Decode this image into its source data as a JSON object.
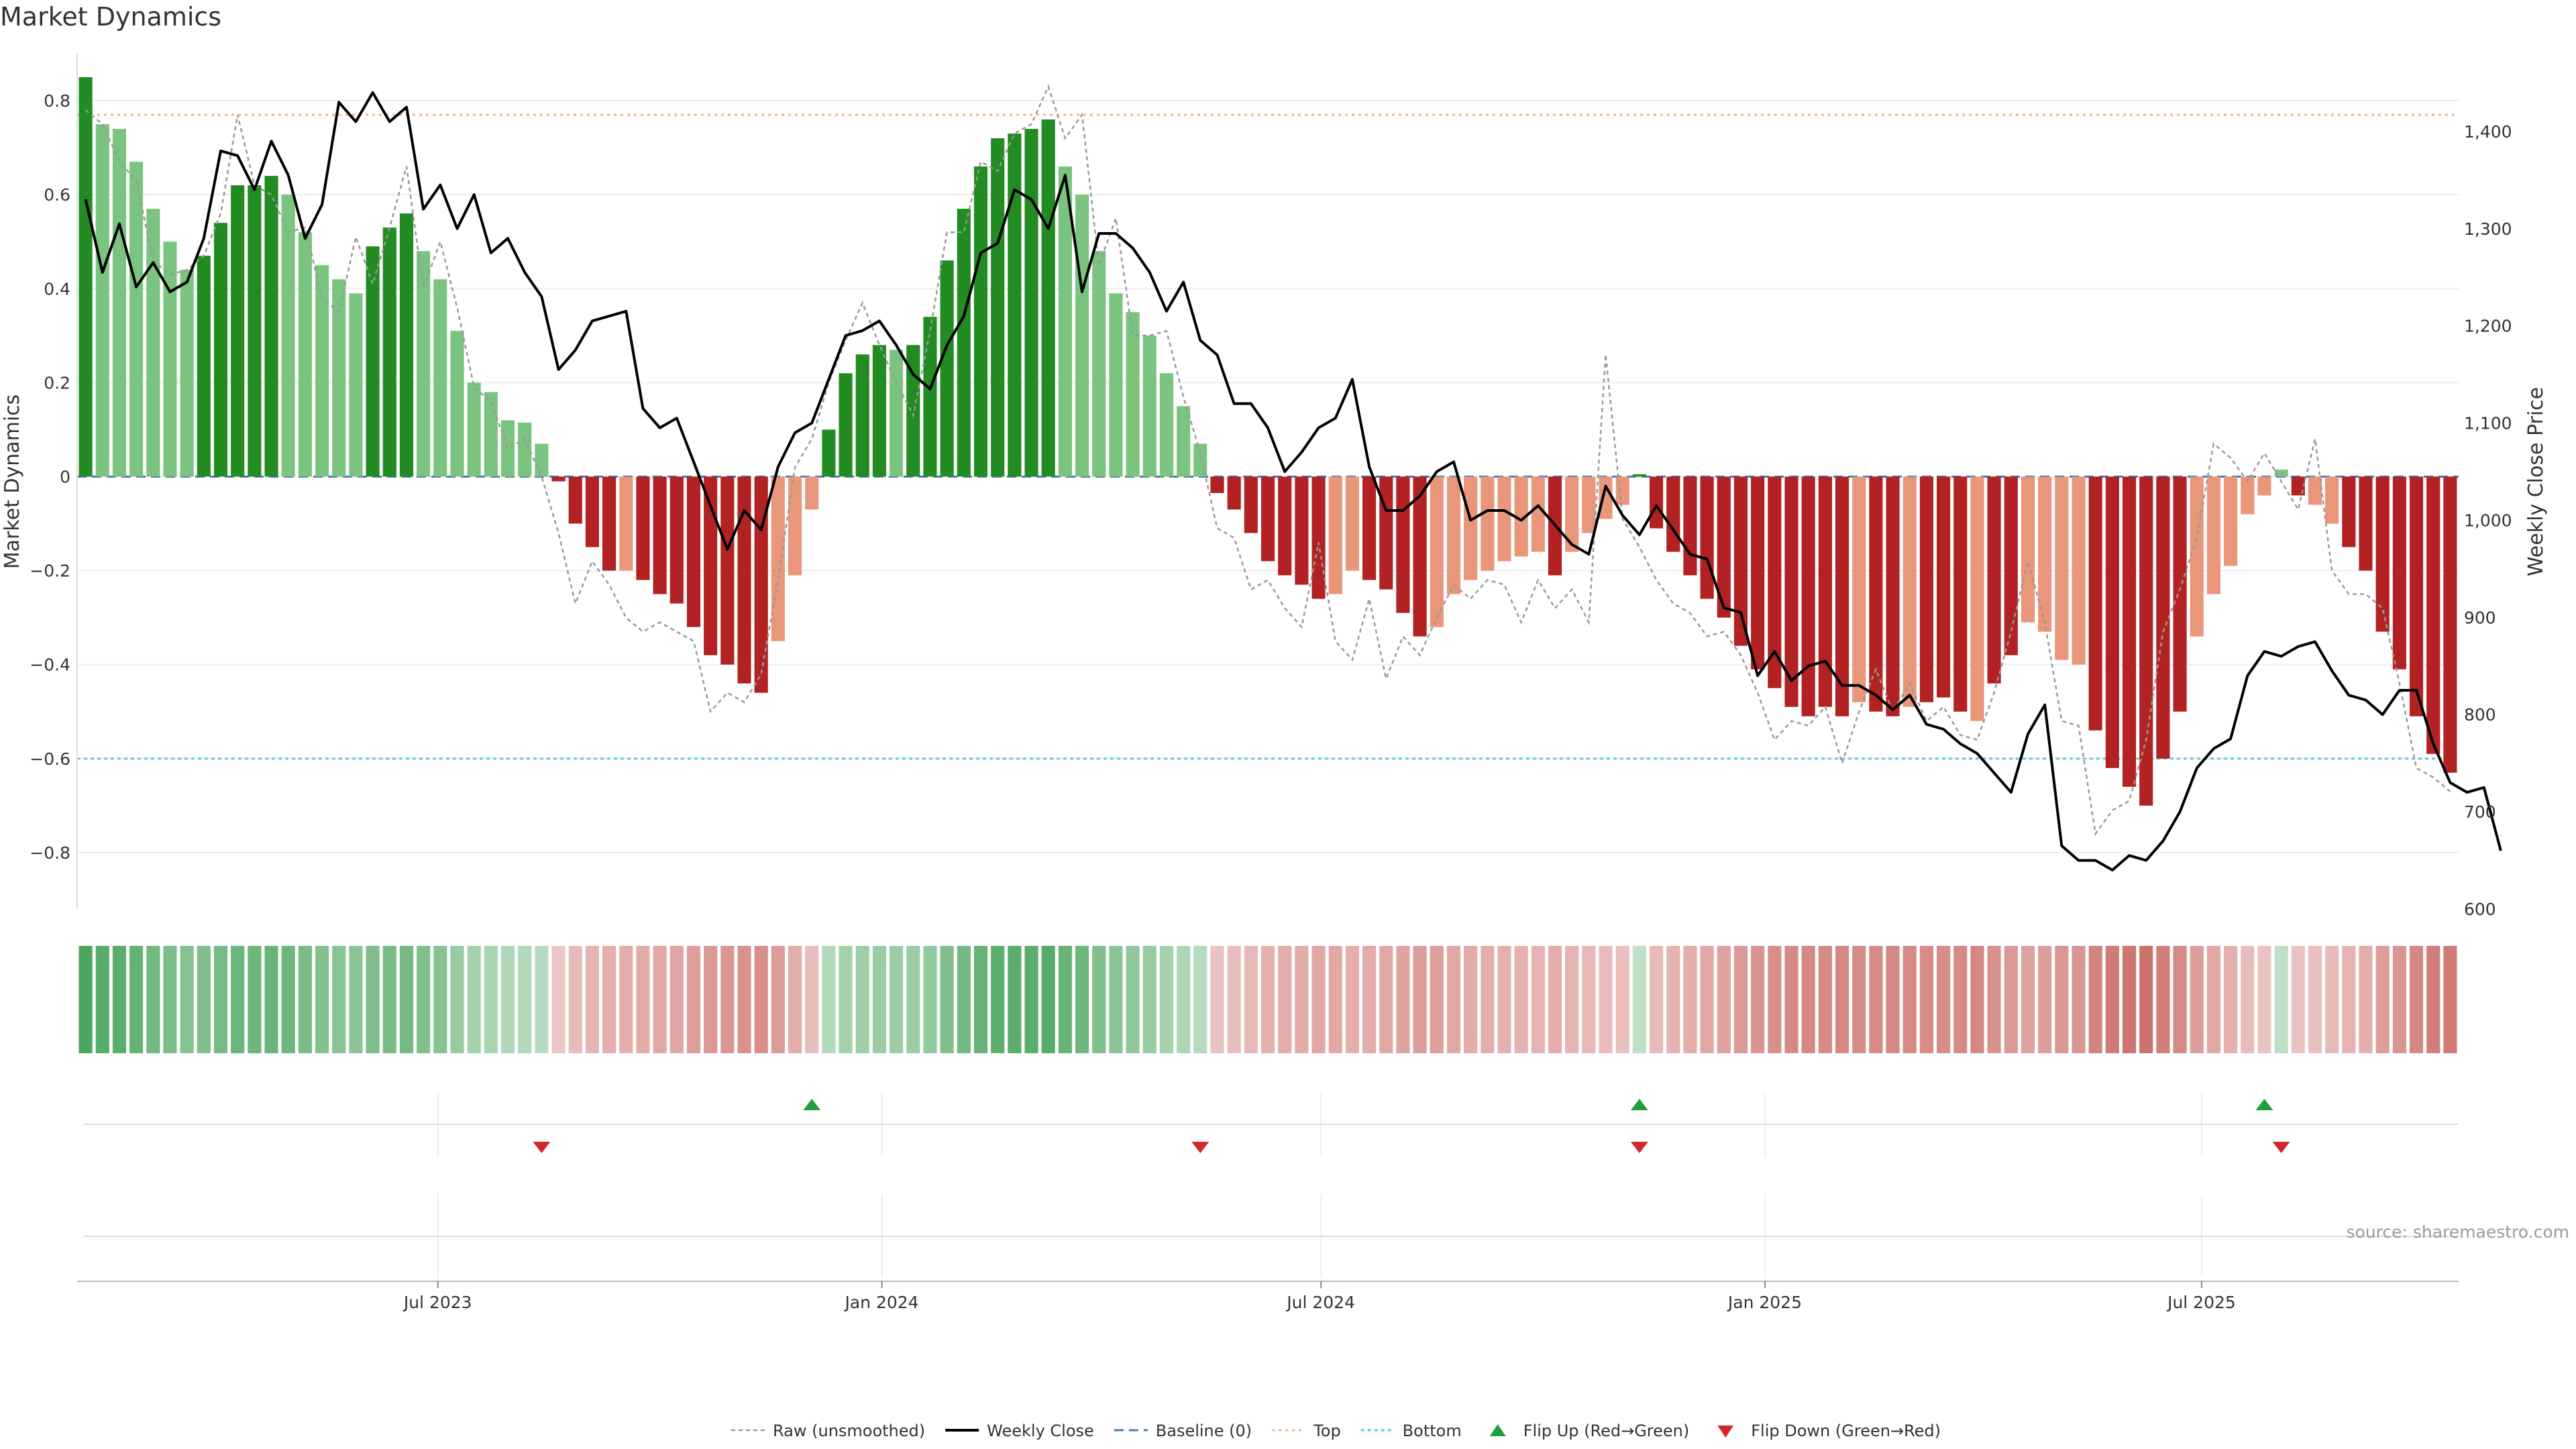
{
  "title": "Market Dynamics",
  "source": "source: sharemaestro.com",
  "colors": {
    "strong_green": "#228B22",
    "light_green": "#7BC47F",
    "strong_red": "#B22222",
    "light_red": "#E9967A",
    "price": "#000000",
    "raw": "#999999",
    "baseline": "#4A78B0",
    "top": "#F0B48C",
    "bottom": "#5BC8DC",
    "flip_up": "#1E9E3E",
    "flip_down": "#D62728"
  },
  "chart_data": {
    "type": "bar",
    "start_date": "2023-02-05",
    "interval_days": 7,
    "ylabel": "Market Dynamics",
    "y2label": "Weekly Close Price",
    "ylim": [
      -0.92,
      0.9
    ],
    "y2lim": [
      600,
      1480
    ],
    "yticks": [
      "0.8",
      "0.6",
      "0.4",
      "0.2",
      "0",
      "−0.2",
      "−0.4",
      "−0.6",
      "−0.8"
    ],
    "y2ticks": [
      "1,400",
      "1,300",
      "1,200",
      "1,100",
      "1,000",
      "900",
      "800",
      "700",
      "600"
    ],
    "top_threshold": 0.77,
    "bottom_threshold": -0.6,
    "x_ticks": [
      {
        "label": "Jul 2023",
        "date": "2023-07-01"
      },
      {
        "label": "Jan 2024",
        "date": "2024-01-01"
      },
      {
        "label": "Jul 2024",
        "date": "2024-07-01"
      },
      {
        "label": "Jan 2025",
        "date": "2025-01-01"
      },
      {
        "label": "Jul 2025",
        "date": "2025-07-01"
      }
    ],
    "dynamics": [
      0.85,
      0.75,
      0.74,
      0.67,
      0.57,
      0.5,
      0.44,
      0.47,
      0.54,
      0.62,
      0.62,
      0.64,
      0.6,
      0.52,
      0.45,
      0.42,
      0.39,
      0.49,
      0.53,
      0.56,
      0.48,
      0.42,
      0.31,
      0.2,
      0.18,
      0.12,
      0.115,
      0.07,
      -0.01,
      -0.1,
      -0.15,
      -0.2,
      -0.2,
      -0.22,
      -0.25,
      -0.27,
      -0.32,
      -0.38,
      -0.4,
      -0.44,
      -0.46,
      -0.35,
      -0.21,
      -0.07,
      0.1,
      0.22,
      0.26,
      0.28,
      0.27,
      0.28,
      0.34,
      0.46,
      0.57,
      0.66,
      0.72,
      0.73,
      0.74,
      0.76,
      0.66,
      0.6,
      0.48,
      0.39,
      0.35,
      0.3,
      0.22,
      0.15,
      0.07,
      -0.035,
      -0.07,
      -0.12,
      -0.18,
      -0.21,
      -0.23,
      -0.26,
      -0.25,
      -0.2,
      -0.22,
      -0.24,
      -0.29,
      -0.34,
      -0.32,
      -0.25,
      -0.22,
      -0.2,
      -0.18,
      -0.17,
      -0.16,
      -0.21,
      -0.16,
      -0.12,
      -0.09,
      -0.06,
      0.005,
      -0.11,
      -0.16,
      -0.21,
      -0.26,
      -0.3,
      -0.36,
      -0.41,
      -0.45,
      -0.49,
      -0.51,
      -0.49,
      -0.51,
      -0.48,
      -0.5,
      -0.51,
      -0.49,
      -0.48,
      -0.47,
      -0.5,
      -0.52,
      -0.44,
      -0.38,
      -0.31,
      -0.33,
      -0.39,
      -0.4,
      -0.54,
      -0.62,
      -0.66,
      -0.7,
      -0.6,
      -0.5,
      -0.34,
      -0.25,
      -0.19,
      -0.08,
      -0.04,
      0.015,
      -0.04,
      -0.06,
      -0.1,
      -0.15,
      -0.2,
      -0.33,
      -0.41,
      -0.51,
      -0.59,
      -0.63
    ],
    "strong_flags": [
      1,
      0,
      0,
      0,
      0,
      0,
      0,
      1,
      1,
      1,
      1,
      1,
      0,
      0,
      0,
      0,
      0,
      1,
      1,
      1,
      0,
      0,
      0,
      0,
      0,
      0,
      0,
      0,
      1,
      1,
      1,
      1,
      0,
      1,
      1,
      1,
      1,
      1,
      1,
      1,
      1,
      0,
      0,
      0,
      1,
      1,
      1,
      1,
      0,
      1,
      1,
      1,
      1,
      1,
      1,
      1,
      1,
      1,
      0,
      0,
      0,
      0,
      0,
      0,
      0,
      0,
      0,
      1,
      1,
      1,
      1,
      1,
      1,
      1,
      0,
      0,
      1,
      1,
      1,
      1,
      0,
      0,
      0,
      0,
      0,
      0,
      0,
      1,
      0,
      0,
      0,
      0,
      1,
      1,
      1,
      1,
      1,
      1,
      1,
      1,
      1,
      1,
      1,
      1,
      1,
      0,
      1,
      1,
      0,
      1,
      1,
      1,
      0,
      1,
      1,
      0,
      0,
      0,
      0,
      1,
      1,
      1,
      1,
      1,
      1,
      0,
      0,
      0,
      0,
      0,
      0,
      1,
      0,
      0,
      1,
      1,
      1,
      1,
      1,
      1,
      1
    ],
    "weekly_close": [
      1330,
      1255,
      1305,
      1240,
      1265,
      1235,
      1245,
      1290,
      1380,
      1375,
      1340,
      1390,
      1355,
      1290,
      1325,
      1430,
      1410,
      1440,
      1410,
      1425,
      1320,
      1345,
      1300,
      1335,
      1275,
      1290,
      1255,
      1230,
      1155,
      1175,
      1205,
      1210,
      1215,
      1115,
      1095,
      1105,
      1060,
      1015,
      970,
      1010,
      990,
      1055,
      1090,
      1100,
      1145,
      1190,
      1195,
      1205,
      1180,
      1150,
      1135,
      1180,
      1210,
      1275,
      1285,
      1340,
      1330,
      1300,
      1355,
      1235,
      1295,
      1295,
      1280,
      1255,
      1215,
      1245,
      1185,
      1170,
      1120,
      1120,
      1095,
      1050,
      1070,
      1095,
      1105,
      1145,
      1055,
      1010,
      1010,
      1025,
      1050,
      1060,
      1000,
      1010,
      1010,
      1000,
      1015,
      995,
      975,
      965,
      1035,
      1005,
      985,
      1015,
      990,
      965,
      960,
      910,
      905,
      840,
      865,
      835,
      850,
      855,
      830,
      830,
      820,
      805,
      820,
      790,
      785,
      770,
      760,
      740,
      720,
      780,
      810,
      665,
      650,
      650,
      640,
      655,
      650,
      670,
      700,
      745,
      765,
      775,
      840,
      865,
      860,
      870,
      875,
      845,
      820,
      815,
      800,
      825,
      825,
      770,
      730,
      720,
      725,
      660
    ],
    "raw": [
      0.78,
      0.75,
      0.67,
      0.63,
      0.46,
      0.43,
      0.44,
      0.47,
      0.56,
      0.77,
      0.62,
      0.6,
      0.52,
      0.53,
      0.38,
      0.35,
      0.51,
      0.41,
      0.53,
      0.66,
      0.4,
      0.5,
      0.36,
      0.19,
      0.16,
      0.06,
      0.08,
      0.0,
      -0.12,
      -0.27,
      -0.18,
      -0.23,
      -0.3,
      -0.33,
      -0.31,
      -0.33,
      -0.35,
      -0.5,
      -0.46,
      -0.48,
      -0.42,
      -0.22,
      0.02,
      0.08,
      0.2,
      0.29,
      0.37,
      0.28,
      0.2,
      0.13,
      0.31,
      0.52,
      0.52,
      0.67,
      0.65,
      0.73,
      0.75,
      0.83,
      0.72,
      0.77,
      0.45,
      0.55,
      0.3,
      0.3,
      0.31,
      0.17,
      0.05,
      -0.11,
      -0.13,
      -0.24,
      -0.22,
      -0.28,
      -0.32,
      -0.14,
      -0.35,
      -0.39,
      -0.26,
      -0.43,
      -0.34,
      -0.38,
      -0.3,
      -0.23,
      -0.26,
      -0.22,
      -0.23,
      -0.31,
      -0.22,
      -0.28,
      -0.24,
      -0.31,
      0.26,
      -0.09,
      -0.15,
      -0.22,
      -0.27,
      -0.29,
      -0.34,
      -0.33,
      -0.38,
      -0.46,
      -0.56,
      -0.52,
      -0.53,
      -0.49,
      -0.61,
      -0.5,
      -0.41,
      -0.5,
      -0.44,
      -0.52,
      -0.49,
      -0.55,
      -0.56,
      -0.46,
      -0.33,
      -0.18,
      -0.31,
      -0.52,
      -0.53,
      -0.76,
      -0.71,
      -0.69,
      -0.56,
      -0.33,
      -0.24,
      -0.13,
      0.07,
      0.04,
      -0.01,
      0.05,
      -0.01,
      -0.07,
      0.08,
      -0.2,
      -0.25,
      -0.25,
      -0.28,
      -0.44,
      -0.62,
      -0.64,
      -0.67
    ],
    "flips_up": [
      43,
      92,
      129
    ],
    "flips_down": [
      27,
      66,
      92,
      130
    ],
    "legend": [
      {
        "label": "Raw (unsmoothed)",
        "kind": "raw"
      },
      {
        "label": "Weekly Close",
        "kind": "price"
      },
      {
        "label": "Baseline (0)",
        "kind": "baseline"
      },
      {
        "label": "Top",
        "kind": "top"
      },
      {
        "label": "Bottom",
        "kind": "bottom"
      },
      {
        "label": "Flip Up (Red→Green)",
        "kind": "flip_up"
      },
      {
        "label": "Flip Down (Green→Red)",
        "kind": "flip_down"
      }
    ]
  }
}
